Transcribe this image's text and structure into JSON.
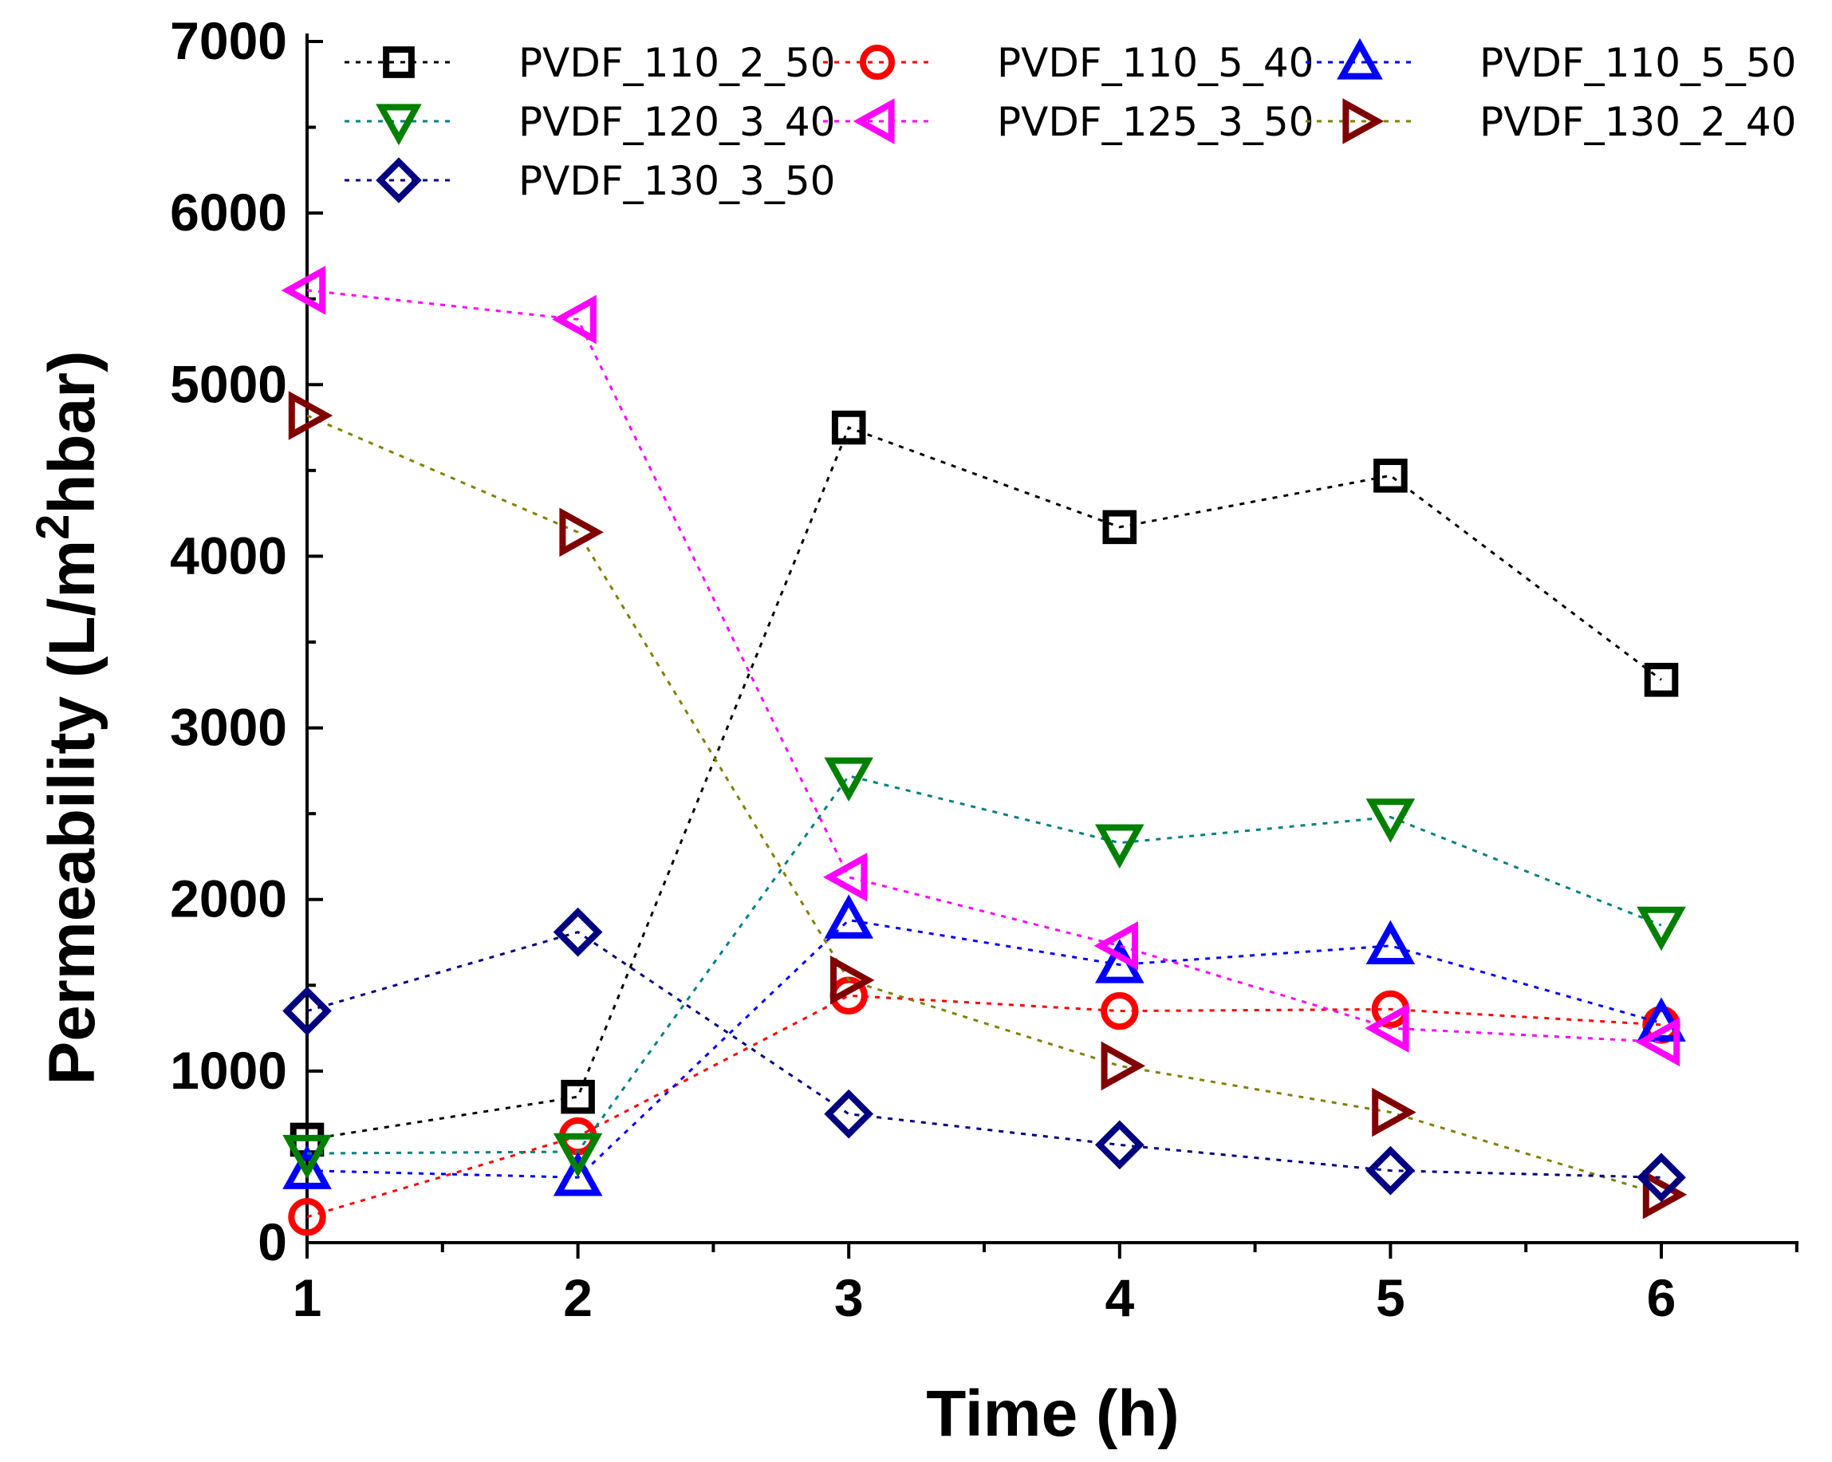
{
  "chart_data": {
    "type": "line",
    "x": [
      1,
      2,
      3,
      4,
      5,
      6
    ],
    "xlabel": "Time (h)",
    "ylabel_prefix": "Permeability (L/m",
    "ylabel_sup": "2",
    "ylabel_suffix": "hbar)",
    "xlim": [
      1,
      6.5
    ],
    "ylim": [
      0,
      7000
    ],
    "xticks": [
      1,
      2,
      3,
      4,
      5,
      6
    ],
    "yticks": [
      0,
      1000,
      2000,
      3000,
      4000,
      5000,
      6000,
      7000
    ],
    "grid": false,
    "legend_position": "top-right",
    "series": [
      {
        "name": "PVDF_110_2_50",
        "marker": "square",
        "color": "#000000",
        "values": [
          600,
          850,
          4750,
          4170,
          4470,
          3280
        ]
      },
      {
        "name": "PVDF_110_5_40",
        "marker": "circle",
        "color": "#ff0000",
        "values": [
          150,
          620,
          1440,
          1350,
          1360,
          1270
        ]
      },
      {
        "name": "PVDF_110_5_50",
        "marker": "triangle-up",
        "color": "#0000ff",
        "values": [
          420,
          380,
          1880,
          1620,
          1730,
          1280
        ]
      },
      {
        "name": "PVDF_120_3_40",
        "marker": "triangle-down",
        "color": "#008000",
        "values": [
          520,
          530,
          2720,
          2330,
          2480,
          1850
        ]
      },
      {
        "name": "PVDF_125_3_50",
        "marker": "triangle-left",
        "color": "#ff00ff",
        "values": [
          5550,
          5380,
          2130,
          1730,
          1250,
          1170
        ]
      },
      {
        "name": "PVDF_130_2_40",
        "marker": "triangle-right",
        "color": "#800000",
        "values": [
          4820,
          4140,
          1530,
          1030,
          760,
          280
        ]
      },
      {
        "name": "PVDF_130_3_50",
        "marker": "diamond",
        "color": "#000080",
        "values": [
          1350,
          1810,
          750,
          570,
          420,
          380
        ]
      }
    ],
    "line_colors": {
      "PVDF_110_2_50": "#000000",
      "PVDF_110_5_40": "#ff0000",
      "PVDF_110_5_50": "#0000ff",
      "PVDF_120_3_40": "#008080",
      "PVDF_125_3_50": "#ff00ff",
      "PVDF_130_2_40": "#808000",
      "PVDF_130_3_50": "#000080"
    }
  }
}
